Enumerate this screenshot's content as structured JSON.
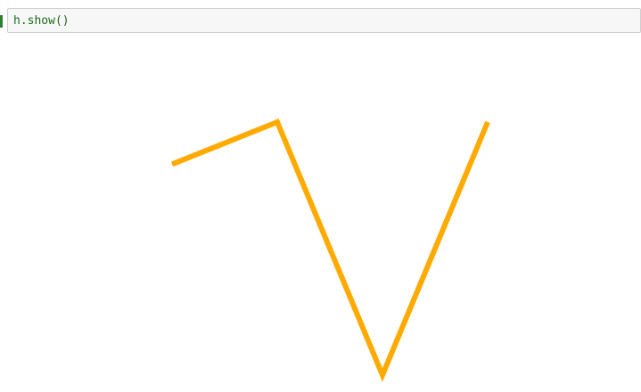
{
  "cell": {
    "code": "h.show()"
  },
  "colors": {
    "line": "#FFAA00",
    "code_text": "#1b6b1b",
    "prompt_tick": "#2f7d32"
  },
  "chart_data": {
    "type": "line",
    "title": "",
    "xlabel": "",
    "ylabel": "",
    "grid": false,
    "axes_visible": false,
    "x": [
      1,
      2,
      3,
      4
    ],
    "series": [
      {
        "values": [
          4,
          5,
          -1,
          5
        ]
      }
    ],
    "xlim": [
      1,
      4
    ],
    "ylim": [
      -1,
      5
    ]
  }
}
